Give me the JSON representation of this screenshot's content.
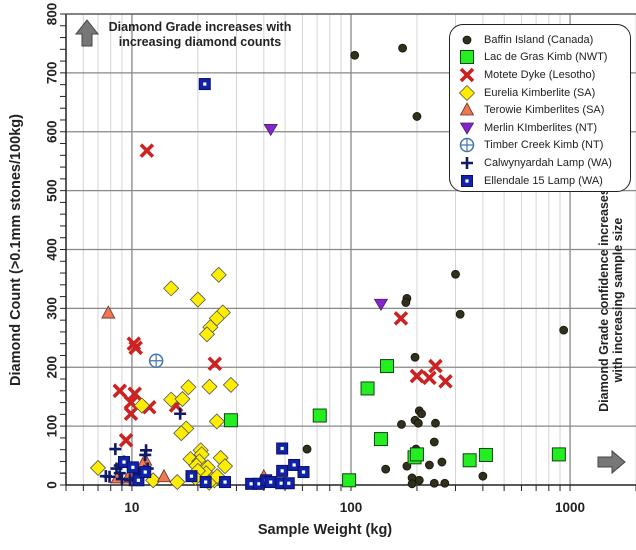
{
  "chart_data": {
    "type": "scatter",
    "xlabel": "Sample Weight (kg)",
    "ylabel": "Diamond Count (>0.1mm stones/100kg)",
    "xscale": "log",
    "xlim": [
      5,
      2000
    ],
    "ylim": [
      0,
      800
    ],
    "xticks": [
      "10",
      "100",
      "1000"
    ],
    "yticks": [
      "0",
      "100",
      "200",
      "300",
      "400",
      "500",
      "600",
      "700",
      "800"
    ],
    "grid": true,
    "legend_position": "top-right",
    "annotations": {
      "top": "Diamond Grade increases with increasing diamond counts",
      "right": "Diamond Grade confidence increases with increasing sample size"
    },
    "series": [
      {
        "name": "Baffin Island (Canada)",
        "marker": "circle",
        "color": "#33301a",
        "points": [
          [
            104,
            730
          ],
          [
            172,
            742
          ],
          [
            200,
            626
          ],
          [
            300,
            358
          ],
          [
            180,
            317
          ],
          [
            178,
            310
          ],
          [
            315,
            290
          ],
          [
            935,
            263
          ],
          [
            196,
            217
          ],
          [
            205,
            126
          ],
          [
            210,
            121
          ],
          [
            170,
            103
          ],
          [
            196,
            110
          ],
          [
            203,
            105
          ],
          [
            243,
            105
          ],
          [
            240,
            73
          ],
          [
            198,
            61
          ],
          [
            63,
            61
          ],
          [
            144,
            27
          ],
          [
            180,
            32
          ],
          [
            228,
            34
          ],
          [
            260,
            39
          ],
          [
            400,
            15
          ],
          [
            190,
            12
          ],
          [
            205,
            8
          ],
          [
            190,
            2
          ],
          [
            240,
            3
          ],
          [
            268,
            3
          ],
          [
            195,
            57
          ]
        ]
      },
      {
        "name": "Lac de Gras Kimb (NWT)",
        "marker": "square",
        "color": "#22ee22",
        "points": [
          [
            98,
            8
          ],
          [
            119,
            164
          ],
          [
            146,
            202
          ],
          [
            137,
            78
          ],
          [
            195,
            47
          ],
          [
            200,
            52
          ],
          [
            348,
            42
          ],
          [
            413,
            51
          ],
          [
            889,
            52
          ],
          [
            28.3,
            110
          ],
          [
            72,
            118
          ]
        ]
      },
      {
        "name": "Motete Dyke (Lesotho)",
        "marker": "x",
        "color": "#cc2222",
        "points": [
          [
            11.7,
            568
          ],
          [
            10.2,
            240
          ],
          [
            10.4,
            233
          ],
          [
            23.9,
            206
          ],
          [
            169,
            283
          ],
          [
            243,
            202
          ],
          [
            200,
            185
          ],
          [
            228,
            182
          ],
          [
            270,
            176
          ],
          [
            8.8,
            160
          ],
          [
            10.3,
            155
          ],
          [
            9.9,
            140
          ],
          [
            12,
            132
          ],
          [
            9.9,
            121
          ],
          [
            9.4,
            76
          ],
          [
            15.9,
            135
          ]
        ]
      },
      {
        "name": "Eurelia Kimberlite (SA)",
        "marker": "diamond",
        "color": "#ffee00",
        "points": [
          [
            15.1,
            334
          ],
          [
            24.9,
            357
          ],
          [
            20,
            315
          ],
          [
            26,
            293
          ],
          [
            24.4,
            283
          ],
          [
            22.8,
            268
          ],
          [
            22,
            256
          ],
          [
            18.1,
            166
          ],
          [
            22.6,
            167
          ],
          [
            28.3,
            170
          ],
          [
            15.1,
            145
          ],
          [
            17,
            146
          ],
          [
            11.1,
            135
          ],
          [
            24.4,
            108
          ],
          [
            17.7,
            96
          ],
          [
            16.8,
            88
          ],
          [
            7.0,
            29
          ],
          [
            12.5,
            8
          ],
          [
            16.1,
            5
          ],
          [
            18.5,
            44
          ],
          [
            20.6,
            59
          ],
          [
            20.8,
            52
          ],
          [
            20.3,
            40
          ],
          [
            19.7,
            33
          ],
          [
            21.5,
            28
          ],
          [
            22.2,
            30
          ],
          [
            21.8,
            20
          ],
          [
            23.2,
            10
          ],
          [
            23.8,
            8
          ],
          [
            25.4,
            46
          ],
          [
            26.6,
            32
          ],
          [
            20,
            24
          ],
          [
            22.5,
            4
          ],
          [
            24.5,
            15
          ],
          [
            19.5,
            12
          ]
        ]
      },
      {
        "name": "Terowie Kimberlites (SA)",
        "marker": "triangle-up",
        "color": "#ee7755",
        "points": [
          [
            7.8,
            292
          ],
          [
            11.5,
            42
          ],
          [
            8.6,
            12
          ],
          [
            9.6,
            12
          ],
          [
            10.3,
            20
          ],
          [
            11.2,
            34
          ],
          [
            14,
            14
          ],
          [
            40,
            14
          ]
        ]
      },
      {
        "name": "Merlin KImberlites (NT)",
        "marker": "triangle-down",
        "color": "#8822cc",
        "points": [
          [
            43,
            604
          ],
          [
            137,
            307
          ]
        ]
      },
      {
        "name": "Timber Creek Kimb (NT)",
        "marker": "circle-cross",
        "color": "#4477aa",
        "points": [
          [
            12.9,
            211
          ]
        ]
      },
      {
        "name": "Calwynyardah Lamp (WA)",
        "marker": "plus",
        "color": "#111a66",
        "points": [
          [
            16.6,
            121
          ],
          [
            8.4,
            61
          ],
          [
            11.6,
            59
          ],
          [
            11.5,
            51
          ],
          [
            9.2,
            40
          ],
          [
            8.8,
            33
          ],
          [
            9.6,
            33
          ],
          [
            10.2,
            28
          ],
          [
            11.4,
            24
          ],
          [
            7.6,
            15
          ],
          [
            7.9,
            14
          ],
          [
            8.8,
            20
          ],
          [
            9.0,
            10
          ],
          [
            9.8,
            8
          ],
          [
            10.6,
            12
          ],
          [
            10.9,
            18
          ],
          [
            11.8,
            28
          ],
          [
            8.5,
            28
          ]
        ]
      },
      {
        "name": "Ellendale 15 Lamp (WA)",
        "marker": "dot-square",
        "color": "#1122aa",
        "points": [
          [
            21.5,
            681
          ],
          [
            18.7,
            15
          ],
          [
            21.7,
            5
          ],
          [
            26.6,
            5
          ],
          [
            35,
            2
          ],
          [
            38,
            2
          ],
          [
            41,
            8
          ],
          [
            43,
            5
          ],
          [
            48.5,
            62
          ],
          [
            48.5,
            24
          ],
          [
            48,
            3
          ],
          [
            52,
            3
          ],
          [
            55,
            34
          ],
          [
            60.7,
            22
          ],
          [
            9.2,
            39
          ],
          [
            10.7,
            8
          ],
          [
            11.5,
            22
          ],
          [
            10.1,
            30
          ]
        ]
      }
    ]
  }
}
